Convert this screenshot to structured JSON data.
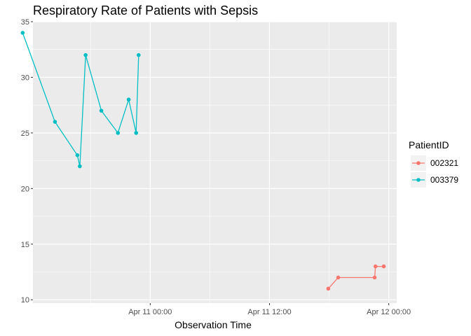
{
  "chart_data": {
    "type": "line",
    "title": "Respiratory Rate of Patients with Sepsis",
    "xlabel": "Observation Time",
    "ylabel": "",
    "x_ticks": [
      {
        "label": "Apr 11 00:00",
        "hours": 0
      },
      {
        "label": "Apr 11 12:00",
        "hours": 12
      },
      {
        "label": "Apr 12 00:00",
        "hours": 24
      }
    ],
    "x_range_hours": [
      -11.8,
      24.8
    ],
    "y_ticks": [
      10,
      15,
      20,
      25,
      30,
      35
    ],
    "ylim": [
      9.7,
      35.0
    ],
    "legend": {
      "title": "PatientID",
      "position": "right"
    },
    "grid": true,
    "series": [
      {
        "name": "002321",
        "color": "#F8766D",
        "points": [
          {
            "x": "Apr 11 17:55",
            "y": 11
          },
          {
            "x": "Apr 11 18:55",
            "y": 12
          },
          {
            "x": "Apr 11 22:35",
            "y": 12
          },
          {
            "x": "Apr 11 22:40",
            "y": 13
          },
          {
            "x": "Apr 11 23:30",
            "y": 13
          }
        ]
      },
      {
        "name": "003379",
        "color": "#00BFC4",
        "points": [
          {
            "x": "Apr 10 11:10",
            "y": 34
          },
          {
            "x": "Apr 10 14:25",
            "y": 26
          },
          {
            "x": "Apr 10 16:40",
            "y": 23
          },
          {
            "x": "Apr 10 16:55",
            "y": 22
          },
          {
            "x": "Apr 10 17:30",
            "y": 32
          },
          {
            "x": "Apr 10 19:05",
            "y": 27
          },
          {
            "x": "Apr 10 20:45",
            "y": 25
          },
          {
            "x": "Apr 10 21:50",
            "y": 28
          },
          {
            "x": "Apr 10 22:35",
            "y": 25
          },
          {
            "x": "Apr 10 22:50",
            "y": 32
          }
        ]
      }
    ]
  }
}
